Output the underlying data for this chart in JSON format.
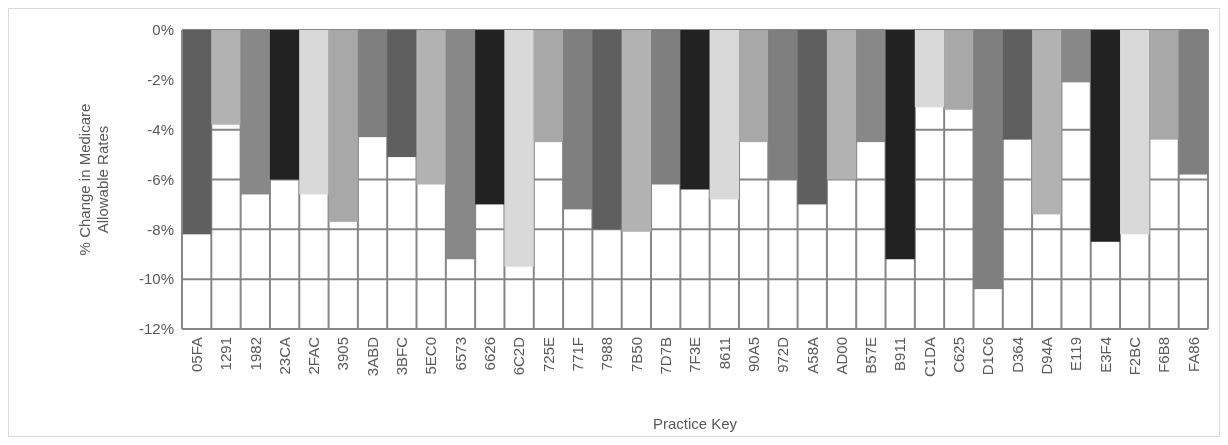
{
  "chart_data": {
    "type": "bar",
    "xlabel": "Practice Key",
    "ylabel": "% Change in Medicare Allowable Rates",
    "categories": [
      "05FA",
      "1291",
      "1982",
      "23CA",
      "2FAC",
      "3905",
      "3ABD",
      "3BFC",
      "5EC0",
      "6573",
      "6626",
      "6C2D",
      "725E",
      "771F",
      "7988",
      "7B50",
      "7D7B",
      "7F3E",
      "8611",
      "90A5",
      "972D",
      "A58A",
      "AD00",
      "B57E",
      "B911",
      "C1DA",
      "C625",
      "D1C6",
      "D364",
      "D94A",
      "E119",
      "E3F4",
      "F2BC",
      "F6B8",
      "FA86"
    ],
    "values": [
      -8.2,
      -3.8,
      -6.6,
      -6.0,
      -6.6,
      -7.7,
      -4.3,
      -5.1,
      -6.2,
      -9.2,
      -7.0,
      -9.5,
      -4.5,
      -7.2,
      -8.0,
      -8.1,
      -6.2,
      -6.4,
      -6.8,
      -4.5,
      -6.0,
      -7.0,
      -6.0,
      -4.5,
      -9.2,
      -3.1,
      -3.2,
      -10.4,
      -4.4,
      -7.4,
      -2.1,
      -8.5,
      -8.2,
      -4.4,
      -5.8
    ],
    "colors": [
      "#5f5f5f",
      "#b2b2b2",
      "#888888",
      "#222222",
      "#d9d9d9",
      "#a8a8a8",
      "#7f7f7f",
      "#5f5f5f",
      "#b2b2b2",
      "#888888",
      "#222222",
      "#d9d9d9",
      "#a8a8a8",
      "#7f7f7f",
      "#5f5f5f",
      "#b2b2b2",
      "#7f7f7f",
      "#222222",
      "#d9d9d9",
      "#a8a8a8",
      "#7f7f7f",
      "#5f5f5f",
      "#b2b2b2",
      "#888888",
      "#222222",
      "#d9d9d9",
      "#a8a8a8",
      "#7f7f7f",
      "#5f5f5f",
      "#b2b2b2",
      "#888888",
      "#222222",
      "#d9d9d9",
      "#a8a8a8",
      "#7f7f7f"
    ],
    "ylim": [
      -12,
      0
    ],
    "yticks": [
      {
        "value": 0,
        "label": "0%"
      },
      {
        "value": -2,
        "label": "-2%"
      },
      {
        "value": -4,
        "label": "-4%"
      },
      {
        "value": -6,
        "label": "-6%"
      },
      {
        "value": -8,
        "label": "-8%"
      },
      {
        "value": -10,
        "label": "-10%"
      },
      {
        "value": -12,
        "label": "-12%"
      }
    ],
    "grid": true
  }
}
